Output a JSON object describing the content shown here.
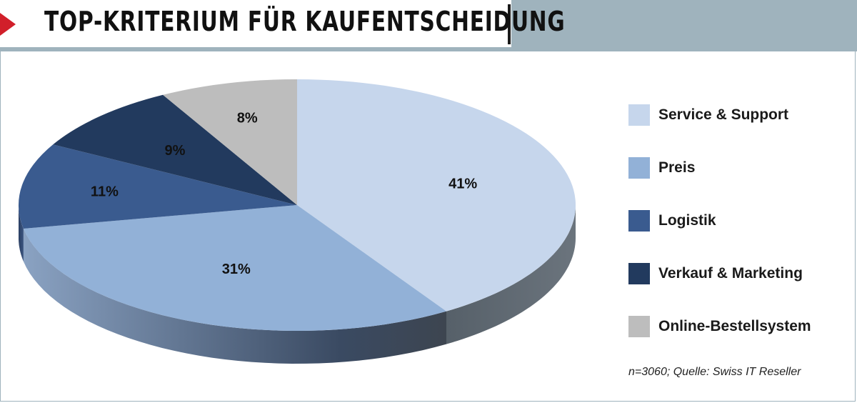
{
  "header": {
    "title": "TOP-KRITERIUM FÜR KAUFENTSCHEIDUNG"
  },
  "chart_data": {
    "type": "pie",
    "title": "TOP-KRITERIUM FÜR KAUFENTSCHEIDUNG",
    "categories": [
      "Service & Support",
      "Preis",
      "Logistik",
      "Verkauf & Marketing",
      "Online-Bestellsystem"
    ],
    "values": [
      41,
      31,
      11,
      9,
      8
    ],
    "labels": [
      "41%",
      "31%",
      "11%",
      "9%",
      "8%"
    ],
    "colors": [
      "#c6d6ec",
      "#92b1d7",
      "#3a5b8f",
      "#223a5e",
      "#bdbdbd"
    ],
    "legend_placement": "right"
  },
  "source": "n=3060; Quelle: Swiss IT Reseller"
}
